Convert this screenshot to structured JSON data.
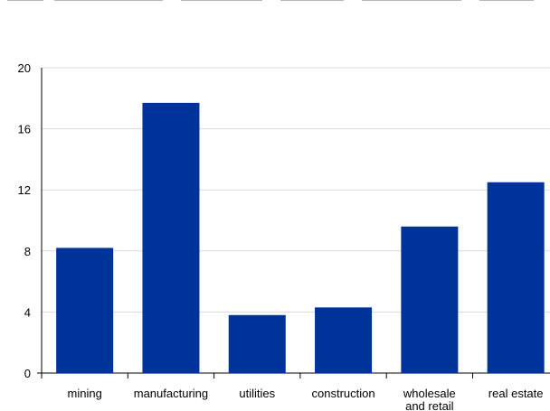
{
  "chart_data": {
    "type": "bar",
    "title": "",
    "xlabel": "",
    "ylabel": "",
    "categories": [
      "mining",
      "manufacturing",
      "utilities",
      "construction",
      [
        "wholesale",
        "and retail"
      ],
      "real estate"
    ],
    "values": [
      8.2,
      17.7,
      3.8,
      4.3,
      9.6,
      12.5
    ],
    "ylim": [
      0,
      20
    ],
    "yticks": [
      "0",
      "4",
      "8",
      "12",
      "16",
      "20"
    ],
    "grid": true,
    "legend": "none",
    "colors": {
      "bar": "#003399",
      "grid": "#d9d9d9",
      "axis": "#000000",
      "text": "#000000"
    }
  }
}
